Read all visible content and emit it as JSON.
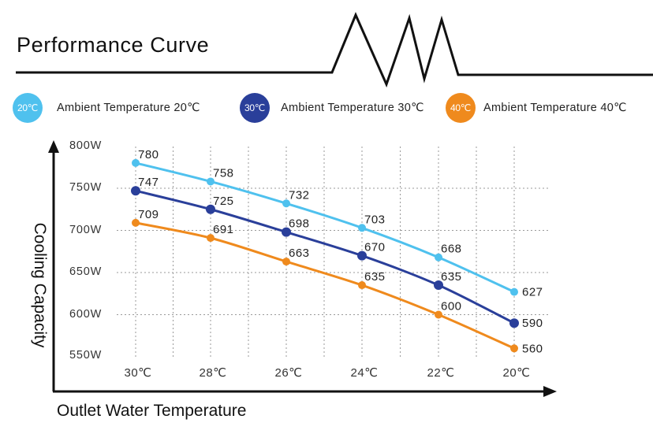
{
  "header": {
    "title": "Performance Curve"
  },
  "legend": [
    {
      "badge": "20℃",
      "label": "Ambient Temperature 20℃",
      "color": "#4fc1ee"
    },
    {
      "badge": "30℃",
      "label": "Ambient Temperature 30℃",
      "color": "#2a3f9a"
    },
    {
      "badge": "40℃",
      "label": "Ambient Temperature 40℃",
      "color": "#ef8a1d"
    }
  ],
  "chart_data": {
    "type": "line",
    "title": "Performance Curve",
    "xlabel": "Outlet Water Temperature",
    "ylabel": "Cooling Capacity",
    "categories": [
      "30℃",
      "28℃",
      "26℃",
      "24℃",
      "22℃",
      "20℃"
    ],
    "yticks": [
      "800W",
      "750W",
      "700W",
      "650W",
      "600W",
      "550W"
    ],
    "ytick_values": [
      800,
      750,
      700,
      650,
      600,
      550
    ],
    "ylim": [
      550,
      800
    ],
    "grid": true,
    "grid_style": "dotted",
    "legend_position": "top",
    "series": [
      {
        "name": "Ambient Temperature 20℃",
        "color": "#4fc1ee",
        "values": [
          780,
          758,
          732,
          703,
          668,
          627
        ]
      },
      {
        "name": "Ambient Temperature 30℃",
        "color": "#2a3f9a",
        "values": [
          747,
          725,
          698,
          670,
          635,
          590
        ]
      },
      {
        "name": "Ambient Temperature 40℃",
        "color": "#ef8a1d",
        "values": [
          709,
          691,
          663,
          635,
          600,
          560
        ]
      }
    ]
  }
}
